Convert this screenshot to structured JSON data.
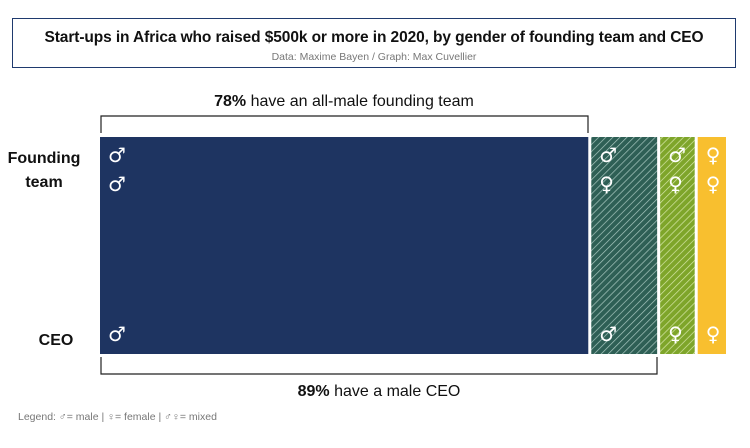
{
  "title": "Start-ups in Africa who raised $500k or more in 2020, by gender of founding team and CEO",
  "subtitle": "Data: Maxime Bayen / Graph: Max Cuvellier",
  "legend": "Legend: ♂= male | ♀= female | ♂♀= mixed",
  "row_labels": {
    "founding": [
      "Founding",
      "team"
    ],
    "ceo": "CEO"
  },
  "annotations": {
    "top": {
      "percent": "78%",
      "text": " have an all-male founding team"
    },
    "bottom": {
      "percent": "89%",
      "text": " have a male CEO"
    }
  },
  "colors": {
    "navy": "#1e3461",
    "hatch_teal": "#2e5f55",
    "hatch_green": "#7ea52a",
    "yellow": "#f8bf2f"
  },
  "chart_data": {
    "type": "bar",
    "stacked_share": true,
    "segments": [
      {
        "founding_team": "male",
        "ceo": "male",
        "share_percent": 78,
        "founding_symbols": [
          "♂",
          "♂"
        ],
        "ceo_symbol": "♂",
        "fill": "navy"
      },
      {
        "founding_team": "mixed",
        "ceo": "male",
        "share_percent": 11,
        "founding_symbols": [
          "♂",
          "♀"
        ],
        "ceo_symbol": "♂",
        "fill": "hatch-teal"
      },
      {
        "founding_team": "mixed",
        "ceo": "female",
        "share_percent": 6,
        "founding_symbols": [
          "♂",
          "♀"
        ],
        "ceo_symbol": "♀",
        "fill": "hatch-green"
      },
      {
        "founding_team": "female",
        "ceo": "female",
        "share_percent": 5,
        "founding_symbols": [
          "♀",
          "♀"
        ],
        "ceo_symbol": "♀",
        "fill": "yellow"
      }
    ]
  }
}
